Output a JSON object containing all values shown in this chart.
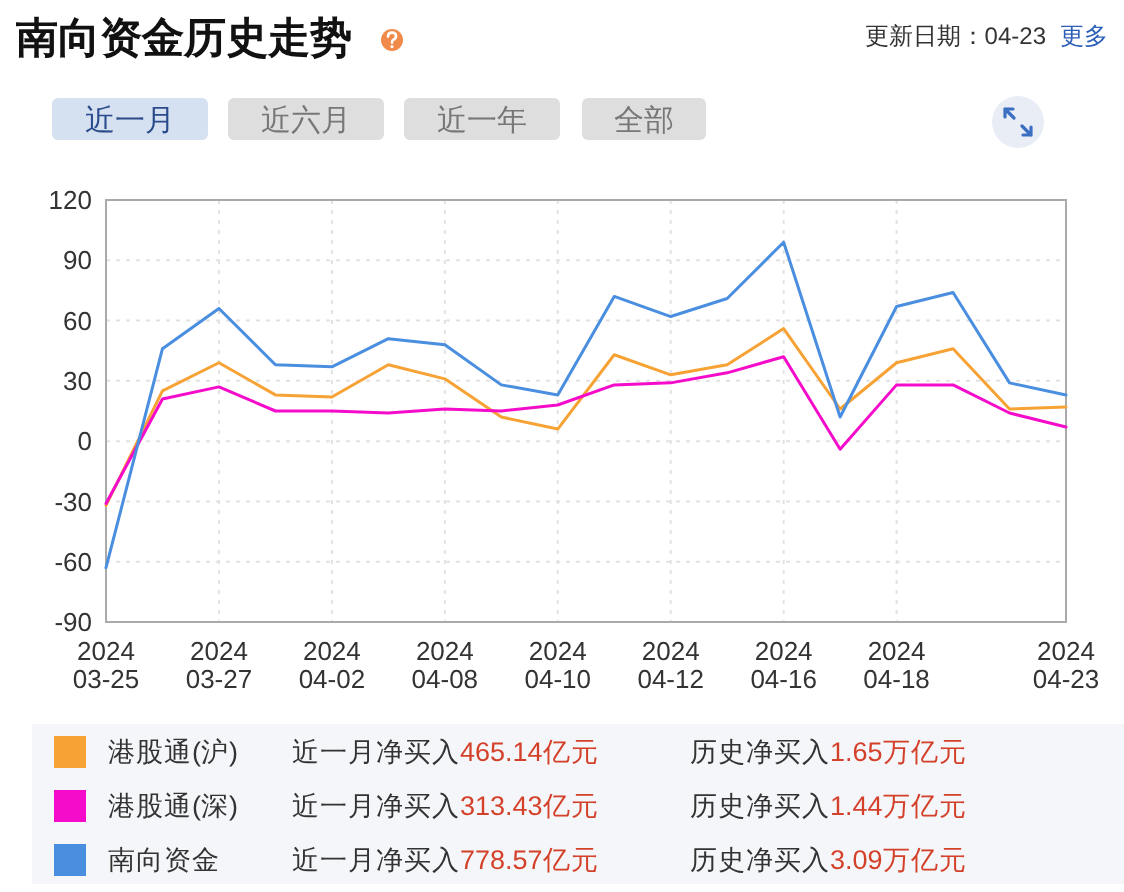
{
  "chart_data": {
    "type": "line",
    "title": "南向资金历史走势",
    "subtitle": "更新日期：04-23",
    "annotations": [
      "更多",
      "近一月",
      "近六月",
      "近一年",
      "全部",
      "近一月净买入465.14亿元",
      "历史净买入1.65万亿元",
      "近一月净买入313.43亿元",
      "历史净买入1.44万亿元",
      "近一月净买入778.57亿元",
      "历史净买入3.09万亿元"
    ],
    "categories": [
      "2024\n03-25",
      null,
      "2024\n03-27",
      null,
      "2024\n04-02",
      null,
      "2024\n04-08",
      null,
      "2024\n04-10",
      null,
      "2024\n04-12",
      null,
      "2024\n04-16",
      null,
      "2024\n04-18",
      null,
      null,
      "2024\n04-23"
    ],
    "series": [
      {
        "name": "港股通(沪)",
        "color": "#f7a235",
        "values": [
          -32,
          25,
          39,
          23,
          22,
          38,
          31,
          12,
          6,
          43,
          33,
          38,
          56,
          16,
          39,
          46,
          16,
          17
        ]
      },
      {
        "name": "港股通(深)",
        "color": "#f50ccb",
        "values": [
          -31,
          21,
          27,
          15,
          15,
          14,
          16,
          15,
          18,
          28,
          29,
          34,
          42,
          -4,
          28,
          28,
          14,
          7
        ]
      },
      {
        "name": "南向资金",
        "color": "#4a8ee0",
        "values": [
          -63,
          46,
          66,
          38,
          37,
          51,
          48,
          28,
          23,
          72,
          62,
          71,
          99,
          12,
          67,
          74,
          29,
          23
        ]
      }
    ],
    "ylim": [
      -90,
      120
    ],
    "yticks": [
      -90,
      -60,
      -30,
      0,
      30,
      60,
      90,
      120
    ],
    "grid": true,
    "legend": "bottom",
    "line_style": "solid"
  }
}
